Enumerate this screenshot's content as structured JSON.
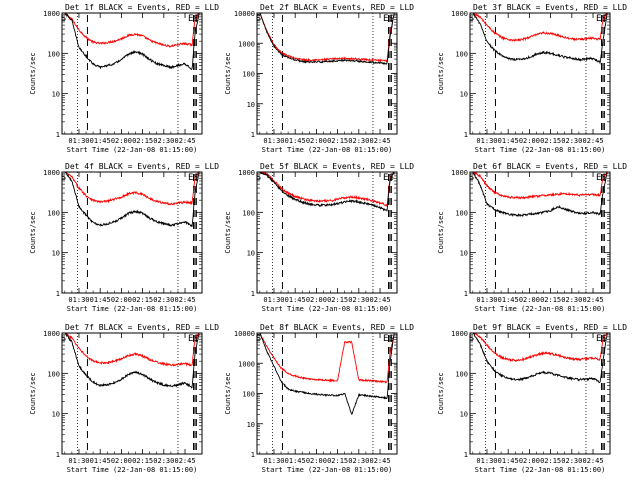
{
  "figure": {
    "y_axis_label": "Counts/sec",
    "x_axis_label": "Start Time (22-Jan-08 01:15:00)",
    "x_tick_labels": [
      "01:30",
      "01:45",
      "02:00",
      "02:15",
      "02:30",
      "02:45"
    ],
    "y_tick_labels": [
      "1",
      "10",
      "100",
      "1000"
    ],
    "y_tick_labels_big": [
      "1",
      "10",
      "100",
      "1000",
      "10000"
    ],
    "marker_labels": {
      "start": "S",
      "end": "E"
    },
    "colors": {
      "events": "#000000",
      "lld": "#ff0000"
    }
  },
  "chart_data": [
    {
      "type": "line",
      "title": "Det 1f BLACK = Events, RED = LLD",
      "xlabel": "Start Time (22-Jan-08 01:15:00)",
      "ylabel": "Counts/sec",
      "x_unit": "minutes after 01:15:00",
      "xlim": [
        3,
        102
      ],
      "ylim": [
        1,
        1000
      ],
      "yscale": "log",
      "x": [
        5,
        10,
        15,
        20,
        25,
        30,
        35,
        40,
        45,
        50,
        55,
        60,
        65,
        70,
        75,
        80,
        85,
        90,
        95,
        97,
        100
      ],
      "series": [
        {
          "name": "RED = LLD",
          "values": [
            1000,
            700,
            380,
            250,
            190,
            175,
            185,
            200,
            230,
            280,
            300,
            270,
            210,
            180,
            160,
            150,
            165,
            175,
            160,
            700,
            1000
          ]
        },
        {
          "name": "BLACK = Events",
          "values": [
            1000,
            650,
            140,
            85,
            55,
            45,
            50,
            55,
            70,
            95,
            110,
            95,
            70,
            55,
            50,
            45,
            50,
            55,
            40,
            300,
            1000
          ]
        }
      ],
      "vlines_dotted": [
        14,
        85
      ],
      "vlines_dashed": [
        21,
        96,
        97,
        98
      ],
      "markers": [
        {
          "label": "S",
          "x": 4
        },
        {
          "label": "E",
          "x": 94
        },
        {
          "label": "S",
          "x": 98
        }
      ]
    },
    {
      "type": "line",
      "title": "Det 2f BLACK = Events, RED = LLD",
      "xlabel": "Start Time (22-Jan-08 01:15:00)",
      "ylabel": "Counts/sec",
      "x_unit": "minutes after 01:15:00",
      "xlim": [
        3,
        102
      ],
      "ylim": [
        1,
        10000
      ],
      "yscale": "log",
      "x": [
        5,
        10,
        15,
        20,
        25,
        30,
        35,
        40,
        45,
        50,
        55,
        60,
        65,
        70,
        75,
        80,
        85,
        90,
        95,
        97,
        100
      ],
      "series": [
        {
          "name": "RED = LLD",
          "values": [
            10000,
            2500,
            900,
            500,
            380,
            320,
            290,
            280,
            280,
            285,
            300,
            310,
            320,
            310,
            300,
            290,
            280,
            270,
            260,
            2000,
            10000
          ]
        },
        {
          "name": "BLACK = Events",
          "values": [
            10000,
            2300,
            800,
            430,
            330,
            280,
            250,
            240,
            240,
            245,
            255,
            265,
            275,
            265,
            255,
            245,
            235,
            225,
            210,
            1500,
            10000
          ]
        }
      ],
      "vlines_dotted": [
        14,
        85
      ],
      "vlines_dashed": [
        21,
        96,
        97,
        98
      ],
      "markers": [
        {
          "label": "S",
          "x": 4
        },
        {
          "label": "E",
          "x": 94
        },
        {
          "label": "S",
          "x": 98
        }
      ]
    },
    {
      "type": "line",
      "title": "Det 3f BLACK = Events, RED = LLD",
      "xlabel": "Start Time (22-Jan-08 01:15:00)",
      "ylabel": "Counts/sec",
      "x_unit": "minutes after 01:15:00",
      "xlim": [
        3,
        102
      ],
      "ylim": [
        1,
        1000
      ],
      "yscale": "log",
      "x": [
        5,
        10,
        15,
        20,
        25,
        30,
        35,
        40,
        45,
        50,
        55,
        60,
        65,
        70,
        75,
        80,
        85,
        90,
        95,
        97,
        100
      ],
      "series": [
        {
          "name": "RED = LLD",
          "values": [
            1000,
            800,
            500,
            330,
            250,
            220,
            210,
            220,
            250,
            290,
            320,
            310,
            280,
            250,
            230,
            220,
            230,
            240,
            220,
            700,
            1000
          ]
        },
        {
          "name": "BLACK = Events",
          "values": [
            1000,
            550,
            200,
            120,
            90,
            75,
            70,
            72,
            80,
            95,
            105,
            100,
            90,
            80,
            75,
            70,
            72,
            75,
            60,
            200,
            1000
          ]
        }
      ],
      "vlines_dotted": [
        14,
        85
      ],
      "vlines_dashed": [
        21,
        96,
        97,
        98
      ],
      "markers": [
        {
          "label": "S",
          "x": 4
        },
        {
          "label": "E",
          "x": 94
        },
        {
          "label": "S",
          "x": 98
        }
      ]
    },
    {
      "type": "line",
      "title": "Det 4f BLACK = Events, RED = LLD",
      "xlabel": "Start Time (22-Jan-08 01:15:00)",
      "ylabel": "Counts/sec",
      "x_unit": "minutes after 01:15:00",
      "xlim": [
        3,
        102
      ],
      "ylim": [
        1,
        1000
      ],
      "yscale": "log",
      "x": [
        5,
        10,
        15,
        20,
        25,
        30,
        35,
        40,
        45,
        50,
        55,
        60,
        65,
        70,
        75,
        80,
        85,
        90,
        95,
        97,
        100
      ],
      "series": [
        {
          "name": "RED = LLD",
          "values": [
            1000,
            750,
            400,
            260,
            200,
            180,
            190,
            210,
            240,
            290,
            310,
            280,
            220,
            190,
            170,
            160,
            170,
            180,
            170,
            700,
            1000
          ]
        },
        {
          "name": "BLACK = Events",
          "values": [
            1000,
            600,
            140,
            85,
            55,
            48,
            52,
            58,
            72,
            95,
            105,
            95,
            72,
            58,
            52,
            48,
            52,
            58,
            45,
            300,
            1000
          ]
        }
      ],
      "vlines_dotted": [
        14,
        85
      ],
      "vlines_dashed": [
        21,
        96,
        97,
        98
      ],
      "markers": [
        {
          "label": "S",
          "x": 4
        },
        {
          "label": "E",
          "x": 94
        },
        {
          "label": "S",
          "x": 98
        }
      ]
    },
    {
      "type": "line",
      "title": "Det 5f BLACK = Events, RED = LLD",
      "xlabel": "Start Time (22-Jan-08 01:15:00)",
      "ylabel": "Counts/sec",
      "x_unit": "minutes after 01:15:00",
      "xlim": [
        3,
        102
      ],
      "ylim": [
        1,
        1000
      ],
      "yscale": "log",
      "x": [
        5,
        10,
        15,
        20,
        25,
        30,
        35,
        40,
        45,
        50,
        55,
        60,
        65,
        70,
        75,
        80,
        85,
        90,
        95,
        97,
        100
      ],
      "series": [
        {
          "name": "RED = LLD",
          "values": [
            1000,
            900,
            600,
            400,
            300,
            250,
            220,
            200,
            190,
            190,
            195,
            210,
            230,
            240,
            230,
            210,
            190,
            170,
            150,
            700,
            1000
          ]
        },
        {
          "name": "BLACK = Events",
          "values": [
            1000,
            850,
            550,
            350,
            260,
            210,
            180,
            160,
            150,
            150,
            155,
            165,
            180,
            190,
            180,
            165,
            150,
            130,
            110,
            600,
            1000
          ]
        }
      ],
      "vlines_dotted": [
        14,
        85
      ],
      "vlines_dashed": [
        21,
        96,
        97,
        98
      ],
      "markers": [
        {
          "label": "S",
          "x": 4
        },
        {
          "label": "E",
          "x": 94
        },
        {
          "label": "S",
          "x": 98
        }
      ]
    },
    {
      "type": "line",
      "title": "Det 6f BLACK = Events, RED = LLD",
      "xlabel": "Start Time (22-Jan-08 01:15:00)",
      "ylabel": "Counts/sec",
      "x_unit": "minutes after 01:15:00",
      "xlim": [
        3,
        102
      ],
      "ylim": [
        1,
        1000
      ],
      "yscale": "log",
      "x": [
        5,
        10,
        15,
        20,
        25,
        30,
        35,
        40,
        45,
        50,
        55,
        60,
        65,
        70,
        75,
        80,
        85,
        90,
        95,
        97,
        100
      ],
      "series": [
        {
          "name": "RED = LLD",
          "values": [
            1000,
            800,
            450,
            320,
            260,
            240,
            230,
            230,
            240,
            250,
            260,
            270,
            280,
            290,
            280,
            270,
            270,
            280,
            260,
            700,
            1000
          ]
        },
        {
          "name": "BLACK = Events",
          "values": [
            1000,
            500,
            160,
            120,
            100,
            90,
            85,
            85,
            90,
            95,
            100,
            110,
            140,
            120,
            105,
            95,
            95,
            100,
            90,
            300,
            1000
          ]
        }
      ],
      "vlines_dotted": [
        14,
        85
      ],
      "vlines_dashed": [
        21,
        96,
        97,
        98
      ],
      "markers": [
        {
          "label": "S",
          "x": 4
        },
        {
          "label": "E",
          "x": 94
        },
        {
          "label": "S",
          "x": 98
        }
      ]
    },
    {
      "type": "line",
      "title": "Det 7f BLACK = Events, RED = LLD",
      "xlabel": "Start Time (22-Jan-08 01:15:00)",
      "ylabel": "Counts/sec",
      "x_unit": "minutes after 01:15:00",
      "xlim": [
        3,
        102
      ],
      "ylim": [
        1,
        1000
      ],
      "yscale": "log",
      "x": [
        5,
        10,
        15,
        20,
        25,
        30,
        35,
        40,
        45,
        50,
        55,
        60,
        65,
        70,
        75,
        80,
        85,
        90,
        95,
        97,
        100
      ],
      "series": [
        {
          "name": "RED = LLD",
          "values": [
            1000,
            750,
            420,
            270,
            200,
            180,
            185,
            200,
            230,
            280,
            300,
            270,
            220,
            190,
            170,
            160,
            165,
            175,
            160,
            700,
            1000
          ]
        },
        {
          "name": "BLACK = Events",
          "values": [
            1000,
            600,
            150,
            90,
            60,
            50,
            52,
            58,
            72,
            95,
            105,
            95,
            72,
            58,
            52,
            48,
            52,
            58,
            45,
            300,
            1000
          ]
        }
      ],
      "vlines_dotted": [
        14,
        85
      ],
      "vlines_dashed": [
        21,
        96,
        97,
        98
      ],
      "markers": [
        {
          "label": "S",
          "x": 4
        },
        {
          "label": "E",
          "x": 94
        },
        {
          "label": "S",
          "x": 98
        }
      ]
    },
    {
      "type": "line",
      "title": "Det 8f BLACK = Events, RED = LLD",
      "xlabel": "Start Time (22-Jan-08 01:15:00)",
      "ylabel": "Counts/sec",
      "x_unit": "minutes after 01:15:00",
      "xlim": [
        3,
        102
      ],
      "ylim": [
        1,
        10000
      ],
      "yscale": "log",
      "x": [
        5,
        10,
        15,
        20,
        25,
        30,
        35,
        40,
        45,
        50,
        55,
        60,
        65,
        70,
        75,
        80,
        85,
        90,
        95,
        97,
        100
      ],
      "series": [
        {
          "name": "RED = LLD",
          "values": [
            10000,
            3500,
            1500,
            700,
            450,
            380,
            330,
            300,
            290,
            280,
            270,
            270,
            5000,
            5000,
            280,
            270,
            260,
            250,
            240,
            2000,
            10000
          ]
        },
        {
          "name": "BLACK = Events",
          "values": [
            10000,
            2500,
            800,
            250,
            140,
            120,
            110,
            100,
            95,
            90,
            88,
            85,
            100,
            20,
            90,
            85,
            80,
            75,
            70,
            1000,
            10000
          ]
        }
      ],
      "vlines_dotted": [
        14,
        85
      ],
      "vlines_dashed": [
        21,
        96,
        97,
        98
      ],
      "markers": [
        {
          "label": "S",
          "x": 4
        },
        {
          "label": "E",
          "x": 94
        },
        {
          "label": "S",
          "x": 98
        }
      ]
    },
    {
      "type": "line",
      "title": "Det 9f BLACK = Events, RED = LLD",
      "xlabel": "Start Time (22-Jan-08 01:15:00)",
      "ylabel": "Counts/sec",
      "x_unit": "minutes after 01:15:00",
      "xlim": [
        3,
        102
      ],
      "ylim": [
        1,
        1000
      ],
      "yscale": "log",
      "x": [
        5,
        10,
        15,
        20,
        25,
        30,
        35,
        40,
        45,
        50,
        55,
        60,
        65,
        70,
        75,
        80,
        85,
        90,
        95,
        97,
        100
      ],
      "series": [
        {
          "name": "RED = LLD",
          "values": [
            1000,
            800,
            500,
            330,
            250,
            220,
            210,
            220,
            250,
            290,
            320,
            310,
            280,
            250,
            230,
            220,
            230,
            240,
            220,
            700,
            1000
          ]
        },
        {
          "name": "BLACK = Events",
          "values": [
            1000,
            550,
            200,
            120,
            90,
            75,
            70,
            72,
            80,
            95,
            105,
            100,
            90,
            80,
            75,
            70,
            72,
            75,
            60,
            200,
            1000
          ]
        }
      ],
      "vlines_dotted": [
        14,
        85
      ],
      "vlines_dashed": [
        21,
        96,
        97,
        98
      ],
      "markers": [
        {
          "label": "S",
          "x": 4
        },
        {
          "label": "E",
          "x": 94
        },
        {
          "label": "S",
          "x": 98
        }
      ]
    }
  ]
}
